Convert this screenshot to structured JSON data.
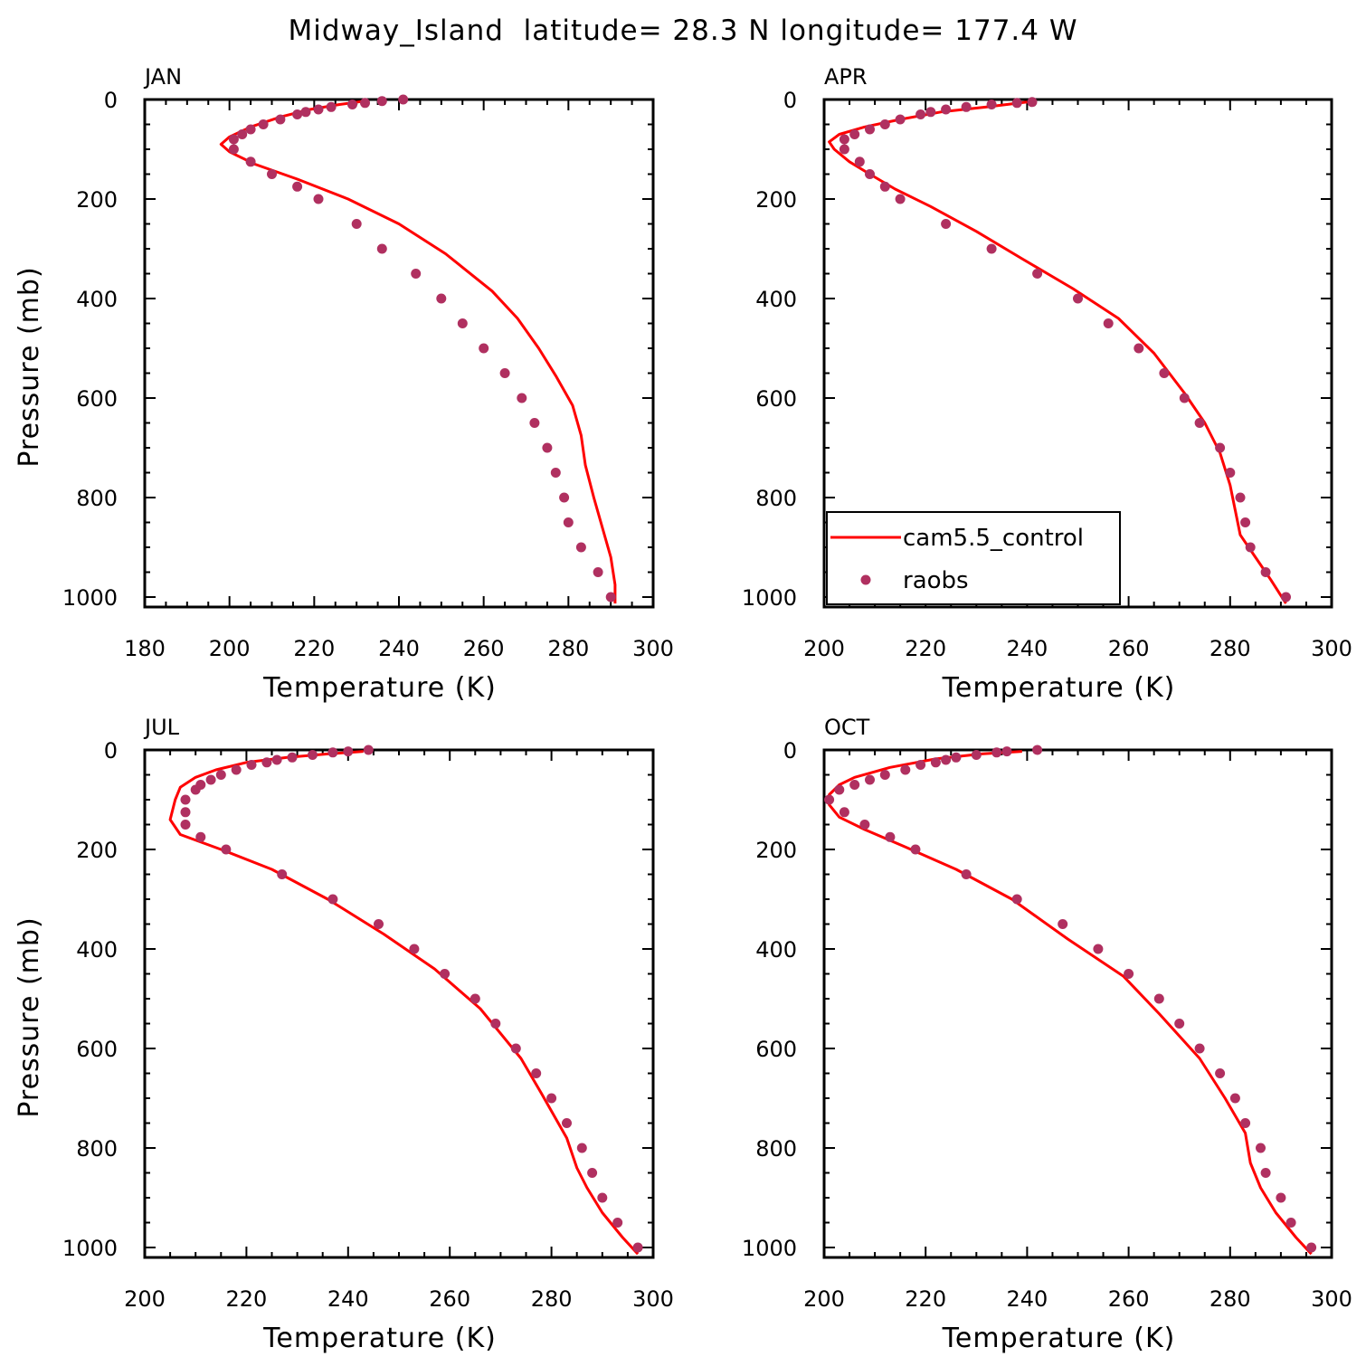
{
  "figure": {
    "title": "Midway_Island  latitude= 28.3 N longitude= 177.4 W"
  },
  "legend": {
    "entries": [
      {
        "label": "cam5.5_control",
        "kind": "line",
        "color": "#ff0000"
      },
      {
        "label": "raobs",
        "kind": "marker",
        "color": "#b03060"
      }
    ]
  },
  "chart_data": [
    {
      "type": "line",
      "title": "JAN",
      "xlabel": "Temperature (K)",
      "ylabel": "Pressure (mb)",
      "xlim": [
        180,
        300
      ],
      "ylim": [
        1020,
        0
      ],
      "xticks": [
        180,
        200,
        220,
        240,
        260,
        280,
        300
      ],
      "yticks": [
        0,
        200,
        400,
        600,
        800,
        1000
      ],
      "series": [
        {
          "name": "cam5.5_control",
          "color": "#ff0000",
          "points": [
            [
              232,
              3
            ],
            [
              226,
              10
            ],
            [
              219,
              20
            ],
            [
              212,
              35
            ],
            [
              205,
              55
            ],
            [
              200,
              75
            ],
            [
              198,
              90
            ],
            [
              200,
              105
            ],
            [
              206,
              130
            ],
            [
              216,
              160
            ],
            [
              228,
              200
            ],
            [
              240,
              250
            ],
            [
              251,
              310
            ],
            [
              262,
              385
            ],
            [
              268,
              440
            ],
            [
              273,
              500
            ],
            [
              277,
              555
            ],
            [
              281,
              615
            ],
            [
              283,
              675
            ],
            [
              284,
              735
            ],
            [
              286,
              800
            ],
            [
              288,
              860
            ],
            [
              290,
              920
            ],
            [
              291,
              975
            ],
            [
              291,
              1013
            ]
          ]
        },
        {
          "name": "raobs",
          "color": "#b03060",
          "points": [
            [
              241,
              0
            ],
            [
              236,
              3
            ],
            [
              232,
              7
            ],
            [
              229,
              10
            ],
            [
              224,
              15
            ],
            [
              221,
              20
            ],
            [
              218,
              25
            ],
            [
              216,
              30
            ],
            [
              212,
              40
            ],
            [
              208,
              50
            ],
            [
              205,
              60
            ],
            [
              203,
              70
            ],
            [
              201,
              80
            ],
            [
              201,
              100
            ],
            [
              205,
              125
            ],
            [
              210,
              150
            ],
            [
              216,
              175
            ],
            [
              221,
              200
            ],
            [
              230,
              250
            ],
            [
              236,
              300
            ],
            [
              244,
              350
            ],
            [
              250,
              400
            ],
            [
              255,
              450
            ],
            [
              260,
              500
            ],
            [
              265,
              550
            ],
            [
              269,
              600
            ],
            [
              272,
              650
            ],
            [
              275,
              700
            ],
            [
              277,
              750
            ],
            [
              279,
              800
            ],
            [
              280,
              850
            ],
            [
              283,
              900
            ],
            [
              287,
              950
            ],
            [
              290,
              1000
            ]
          ]
        }
      ]
    },
    {
      "type": "line",
      "title": "APR",
      "xlabel": "Temperature (K)",
      "ylabel": "",
      "xlim": [
        200,
        300
      ],
      "ylim": [
        1020,
        0
      ],
      "xticks": [
        200,
        220,
        240,
        260,
        280,
        300
      ],
      "yticks": [
        0,
        200,
        400,
        600,
        800,
        1000
      ],
      "series": [
        {
          "name": "cam5.5_control",
          "color": "#ff0000",
          "points": [
            [
              240,
              5
            ],
            [
              232,
              15
            ],
            [
              223,
              25
            ],
            [
              215,
              40
            ],
            [
              208,
              55
            ],
            [
              203,
              70
            ],
            [
              201,
              85
            ],
            [
              202,
              100
            ],
            [
              205,
              125
            ],
            [
              209,
              150
            ],
            [
              214,
              180
            ],
            [
              221,
              215
            ],
            [
              230,
              265
            ],
            [
              239,
              320
            ],
            [
              249,
              380
            ],
            [
              258,
              440
            ],
            [
              265,
              510
            ],
            [
              271,
              590
            ],
            [
              275,
              650
            ],
            [
              278,
              710
            ],
            [
              280,
              775
            ],
            [
              281,
              825
            ],
            [
              282,
              875
            ],
            [
              285,
              920
            ],
            [
              288,
              965
            ],
            [
              291,
              1013
            ]
          ]
        },
        {
          "name": "raobs",
          "color": "#b03060",
          "points": [
            [
              241,
              5
            ],
            [
              238,
              7
            ],
            [
              233,
              10
            ],
            [
              228,
              15
            ],
            [
              224,
              20
            ],
            [
              221,
              25
            ],
            [
              219,
              30
            ],
            [
              215,
              40
            ],
            [
              212,
              50
            ],
            [
              209,
              60
            ],
            [
              206,
              70
            ],
            [
              204,
              80
            ],
            [
              204,
              100
            ],
            [
              207,
              125
            ],
            [
              209,
              150
            ],
            [
              212,
              175
            ],
            [
              215,
              200
            ],
            [
              224,
              250
            ],
            [
              233,
              300
            ],
            [
              242,
              350
            ],
            [
              250,
              400
            ],
            [
              256,
              450
            ],
            [
              262,
              500
            ],
            [
              267,
              550
            ],
            [
              271,
              600
            ],
            [
              274,
              650
            ],
            [
              278,
              700
            ],
            [
              280,
              750
            ],
            [
              282,
              800
            ],
            [
              283,
              850
            ],
            [
              284,
              900
            ],
            [
              287,
              950
            ],
            [
              291,
              1000
            ]
          ]
        }
      ]
    },
    {
      "type": "line",
      "title": "JUL",
      "xlabel": "Temperature (K)",
      "ylabel": "Pressure (mb)",
      "xlim": [
        200,
        300
      ],
      "ylim": [
        1020,
        0
      ],
      "xticks": [
        200,
        220,
        240,
        260,
        280,
        300
      ],
      "yticks": [
        0,
        200,
        400,
        600,
        800,
        1000
      ],
      "series": [
        {
          "name": "cam5.5_control",
          "color": "#ff0000",
          "points": [
            [
              243,
              3
            ],
            [
              236,
              8
            ],
            [
              228,
              15
            ],
            [
              220,
              25
            ],
            [
              214,
              40
            ],
            [
              210,
              55
            ],
            [
              207,
              75
            ],
            [
              206,
              100
            ],
            [
              205,
              140
            ],
            [
              207,
              170
            ],
            [
              215,
              200
            ],
            [
              225,
              240
            ],
            [
              236,
              300
            ],
            [
              247,
              370
            ],
            [
              257,
              440
            ],
            [
              266,
              520
            ],
            [
              274,
              620
            ],
            [
              278,
              690
            ],
            [
              283,
              780
            ],
            [
              285,
              840
            ],
            [
              287,
              880
            ],
            [
              290,
              930
            ],
            [
              294,
              980
            ],
            [
              297,
              1013
            ]
          ]
        },
        {
          "name": "raobs",
          "color": "#b03060",
          "points": [
            [
              244,
              0
            ],
            [
              240,
              3
            ],
            [
              237,
              5
            ],
            [
              233,
              10
            ],
            [
              229,
              15
            ],
            [
              226,
              20
            ],
            [
              224,
              25
            ],
            [
              221,
              30
            ],
            [
              218,
              40
            ],
            [
              215,
              50
            ],
            [
              213,
              60
            ],
            [
              211,
              70
            ],
            [
              210,
              80
            ],
            [
              208,
              100
            ],
            [
              208,
              125
            ],
            [
              208,
              150
            ],
            [
              211,
              175
            ],
            [
              216,
              200
            ],
            [
              227,
              250
            ],
            [
              237,
              300
            ],
            [
              246,
              350
            ],
            [
              253,
              400
            ],
            [
              259,
              450
            ],
            [
              265,
              500
            ],
            [
              269,
              550
            ],
            [
              273,
              600
            ],
            [
              277,
              650
            ],
            [
              280,
              700
            ],
            [
              283,
              750
            ],
            [
              286,
              800
            ],
            [
              288,
              850
            ],
            [
              290,
              900
            ],
            [
              293,
              950
            ],
            [
              297,
              1000
            ]
          ]
        }
      ]
    },
    {
      "type": "line",
      "title": "OCT",
      "xlabel": "Temperature (K)",
      "ylabel": "",
      "xlim": [
        200,
        300
      ],
      "ylim": [
        1020,
        0
      ],
      "xticks": [
        200,
        220,
        240,
        260,
        280,
        300
      ],
      "yticks": [
        0,
        200,
        400,
        600,
        800,
        1000
      ],
      "series": [
        {
          "name": "cam5.5_control",
          "color": "#ff0000",
          "points": [
            [
              239,
              3
            ],
            [
              231,
              8
            ],
            [
              222,
              18
            ],
            [
              213,
              35
            ],
            [
              206,
              55
            ],
            [
              203,
              70
            ],
            [
              201,
              90
            ],
            [
              201,
              110
            ],
            [
              203,
              135
            ],
            [
              208,
              160
            ],
            [
              216,
              195
            ],
            [
              226,
              240
            ],
            [
              237,
              300
            ],
            [
              248,
              380
            ],
            [
              259,
              455
            ],
            [
              266,
              530
            ],
            [
              274,
              620
            ],
            [
              279,
              700
            ],
            [
              283,
              770
            ],
            [
              284,
              830
            ],
            [
              286,
              880
            ],
            [
              289,
              930
            ],
            [
              293,
              980
            ],
            [
              296,
              1013
            ]
          ]
        },
        {
          "name": "raobs",
          "color": "#b03060",
          "points": [
            [
              242,
              0
            ],
            [
              236,
              3
            ],
            [
              234,
              5
            ],
            [
              230,
              10
            ],
            [
              226,
              15
            ],
            [
              224,
              20
            ],
            [
              222,
              25
            ],
            [
              219,
              30
            ],
            [
              216,
              40
            ],
            [
              212,
              50
            ],
            [
              209,
              60
            ],
            [
              206,
              70
            ],
            [
              203,
              80
            ],
            [
              201,
              100
            ],
            [
              204,
              125
            ],
            [
              208,
              150
            ],
            [
              213,
              175
            ],
            [
              218,
              200
            ],
            [
              228,
              250
            ],
            [
              238,
              300
            ],
            [
              247,
              350
            ],
            [
              254,
              400
            ],
            [
              260,
              450
            ],
            [
              266,
              500
            ],
            [
              270,
              550
            ],
            [
              274,
              600
            ],
            [
              278,
              650
            ],
            [
              281,
              700
            ],
            [
              283,
              750
            ],
            [
              286,
              800
            ],
            [
              287,
              850
            ],
            [
              290,
              900
            ],
            [
              292,
              950
            ],
            [
              296,
              1000
            ]
          ]
        }
      ]
    }
  ]
}
